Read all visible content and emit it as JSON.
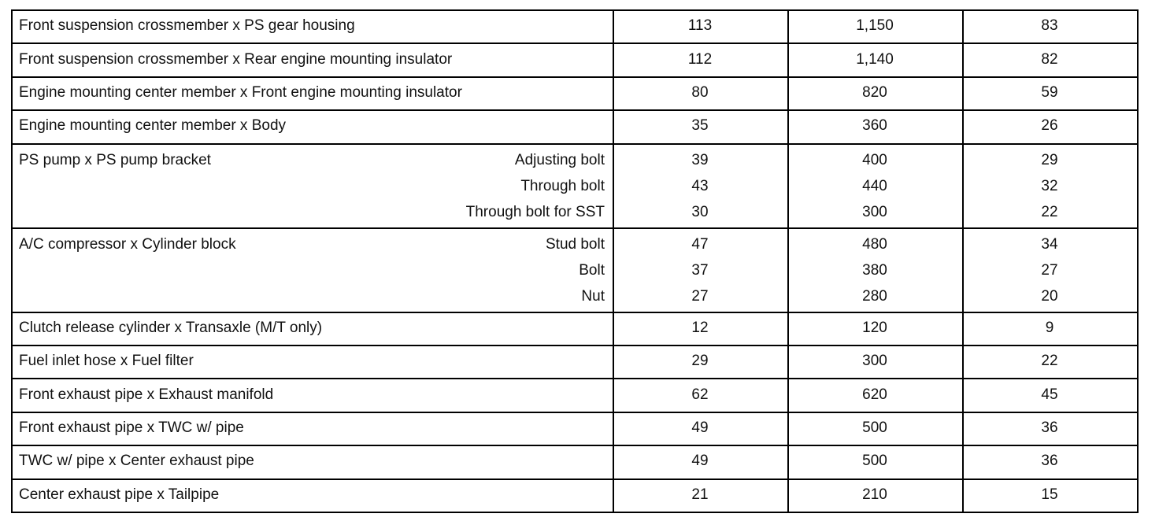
{
  "table": {
    "rows": [
      {
        "label": "Front suspension crossmember x PS gear housing",
        "items": [
          {
            "values": [
              "113",
              "1,150",
              "83"
            ]
          }
        ]
      },
      {
        "label": "Front suspension crossmember x Rear engine mounting insulator",
        "items": [
          {
            "values": [
              "112",
              "1,140",
              "82"
            ]
          }
        ]
      },
      {
        "label": "Engine mounting center member x Front engine mounting insulator",
        "items": [
          {
            "values": [
              "80",
              "820",
              "59"
            ]
          }
        ]
      },
      {
        "label": "Engine mounting center member x Body",
        "items": [
          {
            "values": [
              "35",
              "360",
              "26"
            ]
          }
        ]
      },
      {
        "label": "PS pump x PS pump bracket",
        "items": [
          {
            "sub": "Adjusting bolt",
            "values": [
              "39",
              "400",
              "29"
            ]
          },
          {
            "sub": "Through bolt",
            "values": [
              "43",
              "440",
              "32"
            ]
          },
          {
            "sub": "Through bolt for SST",
            "values": [
              "30",
              "300",
              "22"
            ]
          }
        ]
      },
      {
        "label": "A/C compressor x Cylinder block",
        "items": [
          {
            "sub": "Stud bolt",
            "values": [
              "47",
              "480",
              "34"
            ]
          },
          {
            "sub": "Bolt",
            "values": [
              "37",
              "380",
              "27"
            ]
          },
          {
            "sub": "Nut",
            "values": [
              "27",
              "280",
              "20"
            ]
          }
        ]
      },
      {
        "label": "Clutch release cylinder x Transaxle (M/T only)",
        "items": [
          {
            "values": [
              "12",
              "120",
              "9"
            ]
          }
        ]
      },
      {
        "label": "Fuel inlet hose x Fuel filter",
        "items": [
          {
            "values": [
              "29",
              "300",
              "22"
            ]
          }
        ]
      },
      {
        "label": "Front exhaust pipe x Exhaust manifold",
        "items": [
          {
            "values": [
              "62",
              "620",
              "45"
            ]
          }
        ]
      },
      {
        "label": "Front exhaust pipe x TWC w/ pipe",
        "items": [
          {
            "values": [
              "49",
              "500",
              "36"
            ]
          }
        ]
      },
      {
        "label": "TWC w/ pipe x Center exhaust pipe",
        "items": [
          {
            "values": [
              "49",
              "500",
              "36"
            ]
          }
        ]
      },
      {
        "label": "Center exhaust pipe x Tailpipe",
        "items": [
          {
            "values": [
              "21",
              "210",
              "15"
            ]
          }
        ]
      }
    ]
  }
}
